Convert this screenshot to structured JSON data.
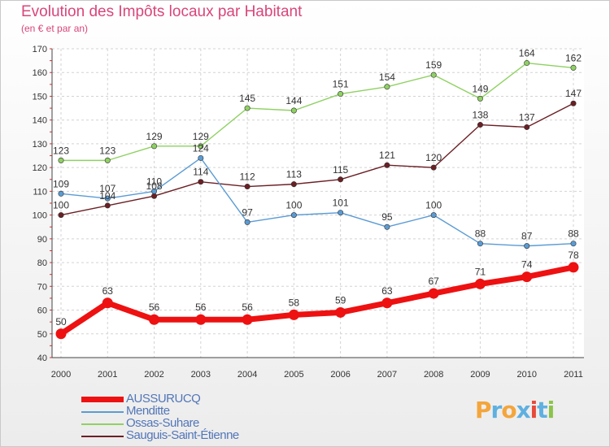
{
  "title": "Evolution des Impôts locaux par Habitant",
  "subtitle": "(en € et par an)",
  "logo": {
    "letters": [
      "P",
      "r",
      "o",
      "x",
      "i",
      "t",
      "i"
    ],
    "colors": [
      "#f4a53b",
      "#5fb0e0",
      "#f4a53b",
      "#5fb0e0",
      "#e74a3a",
      "#5fb0e0",
      "#8bc34a"
    ]
  },
  "chart_data": {
    "type": "line",
    "title": "Evolution des Impôts locaux par Habitant",
    "subtitle": "(en € et par an)",
    "x": [
      "2000",
      "2001",
      "2002",
      "2003",
      "2004",
      "2005",
      "2006",
      "2007",
      "2008",
      "2009",
      "2010",
      "2011"
    ],
    "ylim": [
      40,
      170
    ],
    "yticks": [
      40,
      50,
      60,
      70,
      80,
      90,
      100,
      110,
      120,
      130,
      140,
      150,
      160,
      170
    ],
    "grid": true,
    "legend_position": "bottom-left",
    "series": [
      {
        "name": "AUSSURUCQ",
        "color": "#ee1111",
        "emphasis": true,
        "values": [
          50,
          63,
          56,
          56,
          56,
          58,
          59,
          63,
          67,
          71,
          74,
          78
        ]
      },
      {
        "name": "Menditte",
        "color": "#5a9bd4",
        "emphasis": false,
        "values": [
          109,
          107,
          110,
          124,
          97,
          100,
          101,
          95,
          100,
          88,
          87,
          88
        ]
      },
      {
        "name": "Ossas-Suhare",
        "color": "#8fd162",
        "emphasis": false,
        "values": [
          123,
          123,
          129,
          129,
          145,
          144,
          151,
          154,
          159,
          149,
          164,
          162
        ]
      },
      {
        "name": "Sauguis-Saint-Étienne",
        "color": "#6b1f24",
        "emphasis": false,
        "values": [
          100,
          104,
          108,
          114,
          112,
          113,
          115,
          121,
          120,
          138,
          137,
          147
        ]
      }
    ],
    "data_labels": [
      {
        "series": "Ossas-Suhare",
        "values": [
          "123",
          "123",
          "129",
          "129",
          "145",
          "144",
          "151",
          "154",
          "159",
          "149",
          "164",
          "162"
        ]
      },
      {
        "series": "Menditte",
        "values": [
          "109",
          "107",
          "110",
          "124",
          "97",
          "100",
          "101",
          "95",
          "100",
          "88",
          "87",
          "88"
        ]
      },
      {
        "series": "Sauguis-Saint-Étienne",
        "values": [
          "100",
          "104",
          "108",
          "114",
          "112",
          "113",
          "115",
          "121",
          "120",
          "138",
          "137",
          "147"
        ]
      },
      {
        "series": "AUSSURUCQ",
        "values": [
          "50",
          "63",
          "56",
          "56",
          "56",
          "58",
          "59",
          "63",
          "67",
          "71",
          "74",
          "78"
        ]
      }
    ]
  }
}
